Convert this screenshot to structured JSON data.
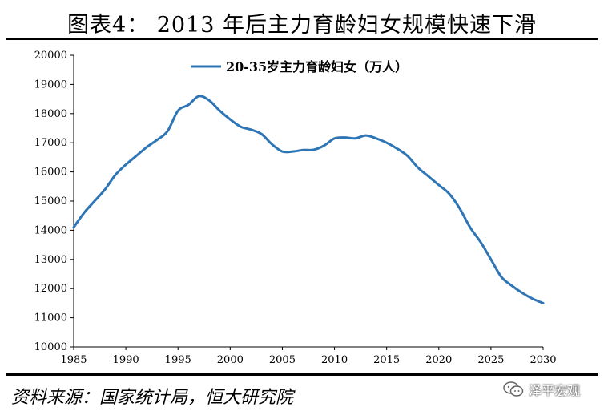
{
  "title": "图表4：  2013 年后主力育龄妇女规模快速下滑",
  "source": "资料来源：国家统计局，恒大研究院",
  "brand": "泽平宏观",
  "colors": {
    "series": "#2E75B6",
    "axis": "#000000"
  },
  "chart_data": {
    "type": "line",
    "title": "",
    "xlabel": "",
    "ylabel": "",
    "xlim": [
      1985,
      2030
    ],
    "ylim": [
      10000,
      20000
    ],
    "xticks": [
      "1985",
      "1990",
      "1995",
      "2000",
      "2005",
      "2010",
      "2015",
      "2020",
      "2025",
      "2030"
    ],
    "yticks": [
      "10000",
      "11000",
      "12000",
      "13000",
      "14000",
      "15000",
      "16000",
      "17000",
      "18000",
      "19000",
      "20000"
    ],
    "legend_position": "top-center",
    "grid": false,
    "series": [
      {
        "name": "20-35岁主力育龄妇女（万人）",
        "x": [
          1985,
          1986,
          1987,
          1988,
          1989,
          1990,
          1991,
          1992,
          1993,
          1994,
          1995,
          1996,
          1997,
          1998,
          1999,
          2000,
          2001,
          2002,
          2003,
          2004,
          2005,
          2006,
          2007,
          2008,
          2009,
          2010,
          2011,
          2012,
          2013,
          2014,
          2015,
          2016,
          2017,
          2018,
          2019,
          2020,
          2021,
          2022,
          2023,
          2024,
          2025,
          2026,
          2027,
          2028,
          2029,
          2030
        ],
        "values": [
          14100,
          14600,
          15000,
          15400,
          15900,
          16250,
          16550,
          16850,
          17100,
          17400,
          18100,
          18300,
          18600,
          18450,
          18100,
          17800,
          17550,
          17450,
          17300,
          16950,
          16700,
          16700,
          16750,
          16760,
          16900,
          17150,
          17180,
          17150,
          17250,
          17150,
          17000,
          16800,
          16550,
          16150,
          15850,
          15550,
          15250,
          14750,
          14100,
          13600,
          13000,
          12400,
          12100,
          11850,
          11650,
          11500
        ]
      }
    ]
  }
}
